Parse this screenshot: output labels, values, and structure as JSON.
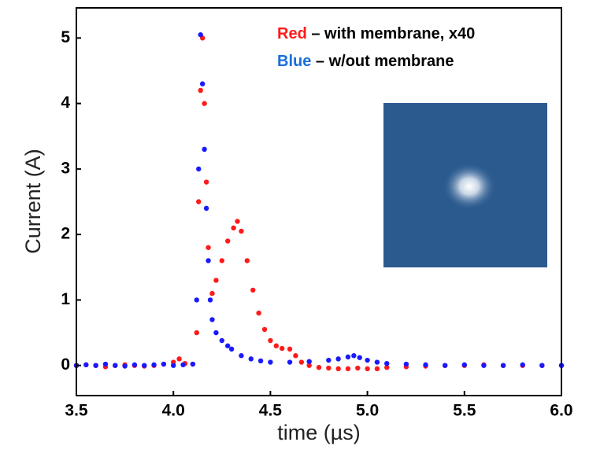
{
  "chart_data": {
    "type": "scatter",
    "xlabel": "time (µs)",
    "ylabel": "Current (A)",
    "xlim": [
      3.5,
      6.0
    ],
    "ylim": [
      -0.46,
      5.46
    ],
    "xticks": [
      3.5,
      {
        "value": 4,
        "label": "4.0"
      },
      4.5,
      {
        "value": 5,
        "label": "5.0"
      },
      5.5,
      {
        "value": 6,
        "label": "6.0"
      }
    ],
    "yticks": [
      0,
      1,
      2,
      3,
      4,
      5
    ],
    "series": [
      {
        "name": "Red",
        "label": "– with membrane, x40",
        "color": "#ff1a1a",
        "x": [
          3.5,
          3.55,
          3.6,
          3.65,
          3.7,
          3.75,
          3.8,
          3.85,
          3.9,
          3.95,
          4.0,
          4.03,
          4.06,
          4.1,
          4.12,
          4.13,
          4.14,
          4.15,
          4.16,
          4.17,
          4.18,
          4.2,
          4.22,
          4.25,
          4.28,
          4.31,
          4.33,
          4.35,
          4.38,
          4.41,
          4.44,
          4.47,
          4.5,
          4.53,
          4.56,
          4.6,
          4.63,
          4.66,
          4.7,
          4.75,
          4.8,
          4.85,
          4.9,
          4.95,
          5.0,
          5.05,
          5.1,
          5.2,
          5.3,
          5.4,
          5.5,
          5.6,
          5.7,
          5.8,
          5.9,
          6.0
        ],
        "values": [
          0,
          0.01,
          0,
          -0.02,
          0,
          0.01,
          0,
          -0.01,
          0,
          0.02,
          0.05,
          0.1,
          0.03,
          0.02,
          0.5,
          2.5,
          4.2,
          5.0,
          4.0,
          2.8,
          1.8,
          1.1,
          1.3,
          1.6,
          1.9,
          2.1,
          2.2,
          2.05,
          1.6,
          1.15,
          0.8,
          0.55,
          0.38,
          0.3,
          0.26,
          0.25,
          0.15,
          0.05,
          0.0,
          -0.03,
          -0.04,
          -0.05,
          -0.05,
          -0.04,
          -0.05,
          -0.05,
          -0.03,
          -0.02,
          -0.01,
          0,
          0,
          0.01,
          0,
          0,
          0,
          0
        ]
      },
      {
        "name": "Blue",
        "label": "– w/out membrane",
        "color": "#1a1aff",
        "x": [
          3.5,
          3.55,
          3.6,
          3.65,
          3.7,
          3.75,
          3.8,
          3.85,
          3.9,
          3.95,
          4.0,
          4.05,
          4.1,
          4.12,
          4.13,
          4.14,
          4.15,
          4.16,
          4.17,
          4.18,
          4.19,
          4.2,
          4.22,
          4.25,
          4.28,
          4.3,
          4.35,
          4.4,
          4.45,
          4.5,
          4.6,
          4.7,
          4.8,
          4.85,
          4.9,
          4.93,
          4.96,
          5.0,
          5.05,
          5.1,
          5.2,
          5.3,
          5.4,
          5.5,
          5.6,
          5.7,
          5.8,
          5.9,
          6.0
        ],
        "values": [
          0,
          0.01,
          0,
          0.02,
          0,
          -0.01,
          0.01,
          0,
          0.01,
          0.02,
          0,
          0.01,
          0.02,
          1.0,
          3.0,
          5.05,
          4.3,
          3.3,
          2.4,
          1.6,
          1.0,
          0.7,
          0.5,
          0.38,
          0.3,
          0.25,
          0.15,
          0.1,
          0.07,
          0.05,
          0.05,
          0.06,
          0.08,
          0.1,
          0.13,
          0.15,
          0.12,
          0.08,
          0.05,
          0.03,
          0.02,
          0.01,
          0,
          0.01,
          0,
          0,
          0.01,
          0,
          0
        ]
      }
    ]
  }
}
